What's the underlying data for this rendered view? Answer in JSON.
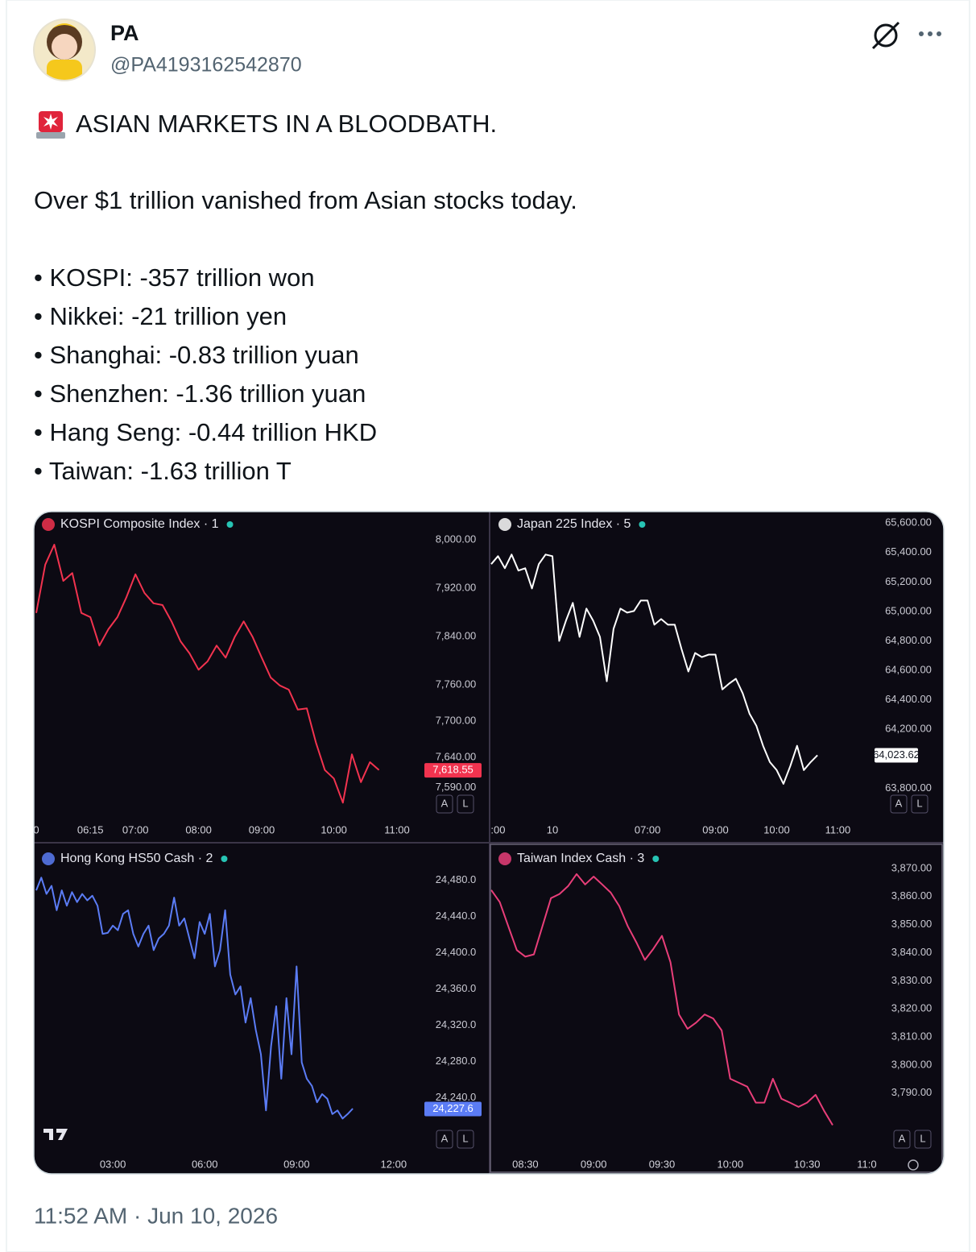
{
  "author": {
    "name": "PA",
    "handle": "@PA4193162542870"
  },
  "text": {
    "headline": "ASIAN MARKETS IN A BLOODBATH.",
    "intro": "Over $1 trillion vanished from Asian stocks today.",
    "bullets": [
      "• KOSPI: -357 trillion won",
      "• Nikkei: -21 trillion yen",
      "• Shanghai: -0.83 trillion yuan",
      "• Shenzhen: -1.36 trillion yuan",
      "• Hang Seng: -0.44 trillion HKD",
      "• Taiwan: -1.63 trillion T"
    ]
  },
  "timestamp": "11:52 AM · Jun 10, 2026",
  "chart_data": [
    {
      "type": "line",
      "title": "KOSPI Composite Index · 1",
      "color": "#f2334f",
      "categories": [
        "0",
        null,
        null,
        null,
        null,
        null,
        "06:15",
        null,
        null,
        null,
        null,
        "07:00",
        null,
        null,
        null,
        null,
        null,
        null,
        "08:00",
        null,
        null,
        null,
        null,
        null,
        null,
        "09:00",
        null,
        null,
        null,
        null,
        null,
        null,
        null,
        "10:00",
        null,
        null,
        null,
        null,
        null,
        null,
        "11:00"
      ],
      "values": [
        7879,
        7959,
        7992,
        7932,
        7945,
        7879,
        7872,
        7825,
        7852,
        7872,
        7905,
        7943,
        7912,
        7895,
        7892,
        7865,
        7832,
        7812,
        7785,
        7799,
        7825,
        7805,
        7839,
        7865,
        7839,
        7805,
        7772,
        7759,
        7752,
        7719,
        7721,
        7665,
        7619,
        7605,
        7565,
        7645,
        7599,
        7632,
        7619,
        null,
        null
      ],
      "ylim": [
        7540,
        8040
      ],
      "yticks": [
        {
          "value": 8000,
          "label": "8,000.00"
        },
        {
          "value": 7920,
          "label": "7,920.00"
        },
        {
          "value": 7840,
          "label": "7,840.00"
        },
        {
          "value": 7760,
          "label": "7,760.00"
        },
        {
          "value": 7700,
          "label": "7,700.00"
        },
        {
          "value": 7640,
          "label": "7,640.00"
        },
        {
          "value": 7590,
          "label": "7,590.00"
        }
      ],
      "last_price": {
        "value": 7618.55,
        "label": "7,618.55"
      },
      "controls": [
        "A",
        "L"
      ]
    },
    {
      "type": "line",
      "title": "Japan 225 Index · 5",
      "color": "#ffffff",
      "categories": [
        null,
        ":00",
        null,
        null,
        null,
        null,
        null,
        null,
        null,
        "10",
        null,
        null,
        null,
        null,
        null,
        null,
        null,
        null,
        null,
        null,
        null,
        null,
        null,
        "07:00",
        null,
        null,
        null,
        null,
        null,
        null,
        null,
        null,
        null,
        "09:00",
        null,
        null,
        null,
        null,
        null,
        null,
        null,
        null,
        "10:00",
        null,
        null,
        null,
        null,
        null,
        null,
        null,
        null,
        "11:00"
      ],
      "values": [
        65321,
        65375,
        65293,
        65386,
        65277,
        65293,
        65156,
        65321,
        65386,
        65375,
        64800,
        64937,
        65058,
        64827,
        65019,
        64937,
        64827,
        64526,
        64882,
        65019,
        64992,
        65003,
        65074,
        65074,
        64910,
        64948,
        64910,
        64910,
        64745,
        64592,
        64718,
        64690,
        64707,
        64707,
        64471,
        64510,
        64543,
        64444,
        64307,
        64225,
        64088,
        63978,
        63923,
        63830,
        63951,
        64088,
        63923,
        63978,
        64024,
        null,
        null,
        null
      ],
      "ylim": [
        63600,
        65650
      ],
      "yticks": [
        {
          "value": 65600,
          "label": "65,600.00"
        },
        {
          "value": 65400,
          "label": "65,400.00"
        },
        {
          "value": 65200,
          "label": "65,200.00"
        },
        {
          "value": 65000,
          "label": "65,000.00"
        },
        {
          "value": 64800,
          "label": "64,800.00"
        },
        {
          "value": 64600,
          "label": "64,600.00"
        },
        {
          "value": 64400,
          "label": "64,400.00"
        },
        {
          "value": 64200,
          "label": "64,200.00"
        },
        {
          "value": 63800,
          "label": "63,800.00"
        }
      ],
      "last_price": {
        "value": 64023.62,
        "label": "64,023.62"
      },
      "controls": [
        "A",
        "L"
      ]
    },
    {
      "type": "line",
      "title": "Hong Kong HS50 Cash · 2",
      "color": "#5b7cf5",
      "categories": [
        null,
        null,
        null,
        null,
        null,
        null,
        null,
        null,
        null,
        null,
        null,
        null,
        null,
        null,
        null,
        "03:00",
        null,
        null,
        null,
        null,
        null,
        null,
        null,
        null,
        null,
        null,
        null,
        null,
        null,
        null,
        null,
        null,
        null,
        "06:00",
        null,
        null,
        null,
        null,
        null,
        null,
        null,
        null,
        null,
        null,
        null,
        null,
        null,
        null,
        null,
        null,
        null,
        "09:00",
        null,
        null,
        null,
        null,
        null,
        null,
        null,
        null,
        null,
        null,
        null,
        null,
        null,
        null,
        null,
        null,
        null,
        null,
        "12:00"
      ],
      "values": [
        24469,
        24483,
        24465,
        24474,
        24447,
        24469,
        24452,
        24467,
        24456,
        24465,
        24458,
        24463,
        24452,
        24421,
        24422,
        24430,
        24425,
        24443,
        24447,
        24421,
        24407,
        24421,
        24430,
        24403,
        24416,
        24421,
        24430,
        24461,
        24430,
        24438,
        24416,
        24394,
        24434,
        24421,
        24443,
        24385,
        24403,
        24447,
        24376,
        24354,
        24363,
        24323,
        24350,
        24315,
        24288,
        24226,
        24297,
        24341,
        24261,
        24350,
        24288,
        24385,
        24279,
        24261,
        24253,
        24235,
        24244,
        24239,
        24222,
        24226,
        24217,
        24222,
        24228,
        null,
        null,
        null,
        null,
        null,
        null,
        null,
        null
      ],
      "ylim": [
        24180,
        24518
      ],
      "yticks": [
        {
          "value": 24480,
          "label": "24,480.0"
        },
        {
          "value": 24440,
          "label": "24,440.0"
        },
        {
          "value": 24400,
          "label": "24,400.0"
        },
        {
          "value": 24360,
          "label": "24,360.0"
        },
        {
          "value": 24320,
          "label": "24,320.0"
        },
        {
          "value": 24280,
          "label": "24,280.0"
        },
        {
          "value": 24240,
          "label": "24,240.0"
        }
      ],
      "last_price": {
        "value": 24227.6,
        "label": "24,227.6"
      },
      "controls": [
        "A",
        "L"
      ]
    },
    {
      "type": "line",
      "title": "Taiwan Index Cash · 3",
      "color": "#e83e79",
      "categories": [
        null,
        null,
        null,
        null,
        "08:30",
        null,
        null,
        null,
        null,
        null,
        null,
        null,
        "09:00",
        null,
        null,
        null,
        null,
        null,
        null,
        null,
        "09:30",
        null,
        null,
        null,
        null,
        null,
        null,
        null,
        "10:00",
        null,
        null,
        null,
        null,
        null,
        null,
        null,
        null,
        "10:30",
        null,
        null,
        null,
        null,
        null,
        null,
        "11:0"
      ],
      "values": [
        3862.3,
        3858,
        3849.4,
        3840.9,
        3838.6,
        3839.4,
        3849.4,
        3859.4,
        3860.9,
        3863.7,
        3868,
        3864.3,
        3867.1,
        3864.3,
        3861.4,
        3856.6,
        3849.4,
        3843.7,
        3837.4,
        3841.4,
        3846,
        3836.6,
        3818,
        3812.9,
        3815.1,
        3818,
        3816.6,
        3812.3,
        3795.1,
        3793.7,
        3792.3,
        3786.6,
        3786.6,
        3795.1,
        3788,
        3786.6,
        3785.1,
        3786.6,
        3789.4,
        3783.7,
        3778.6,
        null,
        null,
        null,
        null
      ],
      "ylim": [
        3769,
        3878
      ],
      "yticks": [
        {
          "value": 3870,
          "label": "3,870.00"
        },
        {
          "value": 3860,
          "label": "3,860.00"
        },
        {
          "value": 3850,
          "label": "3,850.00"
        },
        {
          "value": 3840,
          "label": "3,840.00"
        },
        {
          "value": 3830,
          "label": "3,830.00"
        },
        {
          "value": 3820,
          "label": "3,820.00"
        },
        {
          "value": 3810,
          "label": "3,810.00"
        },
        {
          "value": 3800,
          "label": "3,800.00"
        },
        {
          "value": 3790,
          "label": "3,790.00"
        }
      ],
      "controls": [
        "A",
        "L"
      ]
    }
  ]
}
